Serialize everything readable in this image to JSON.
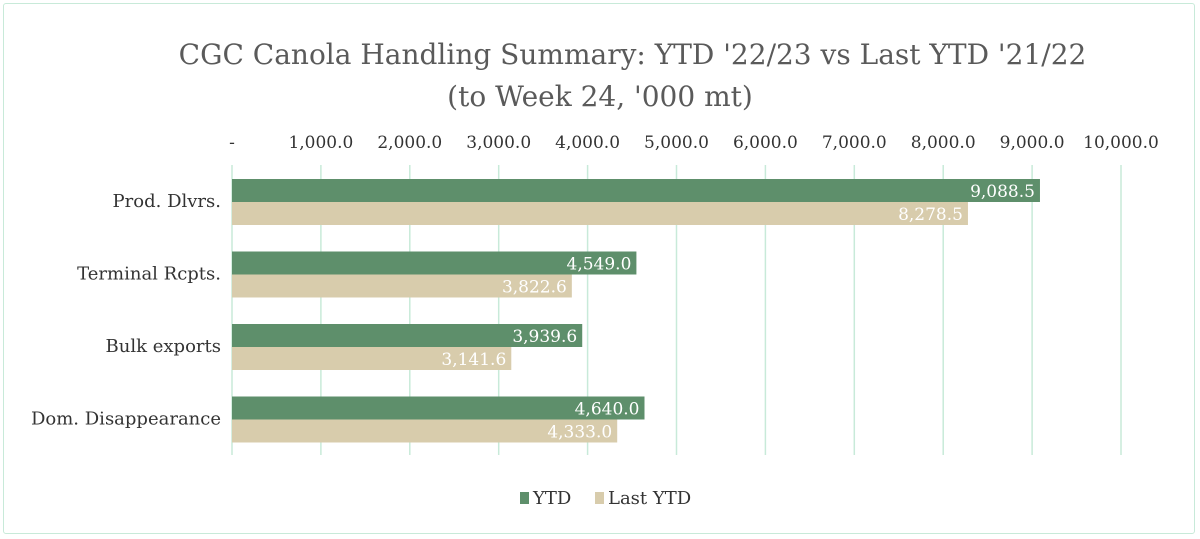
{
  "chart_data": {
    "type": "bar",
    "orientation": "horizontal",
    "title": "CGC Canola Handling Summary: YTD '22/23 vs Last YTD '21/22",
    "subtitle": "(to Week 24, '000 mt)",
    "xlabel": "",
    "ylabel": "",
    "xlim": [
      0,
      10000
    ],
    "tick_values": [
      0,
      1000,
      2000,
      3000,
      4000,
      5000,
      6000,
      7000,
      8000,
      9000,
      10000
    ],
    "tick_labels": [
      "-",
      "1,000.0",
      "2,000.0",
      "3,000.0",
      "4,000.0",
      "5,000.0",
      "6,000.0",
      "7,000.0",
      "8,000.0",
      "9,000.0",
      "10,000.0"
    ],
    "grid": true,
    "axis_position": "top",
    "legend_position": "bottom",
    "categories": [
      "Prod. Dlvrs.",
      "Terminal Rcpts.",
      "Bulk exports",
      "Dom. Disappearance"
    ],
    "series": [
      {
        "name": "YTD",
        "color": "#5e8f6b",
        "values": [
          9088.5,
          4549.0,
          3939.6,
          4640.0
        ],
        "labels": [
          "9,088.5",
          "4,549.0",
          "3,939.6",
          "4,640.0"
        ]
      },
      {
        "name": "Last YTD",
        "color": "#d8ccac",
        "values": [
          8278.5,
          3822.6,
          3141.6,
          4333.0
        ],
        "labels": [
          "8,278.5",
          "3,822.6",
          "3,141.6",
          "4,333.0"
        ]
      }
    ],
    "colors": {
      "gridline": "#c8ead9",
      "text": "#333333",
      "title": "#5a5a5a"
    }
  }
}
